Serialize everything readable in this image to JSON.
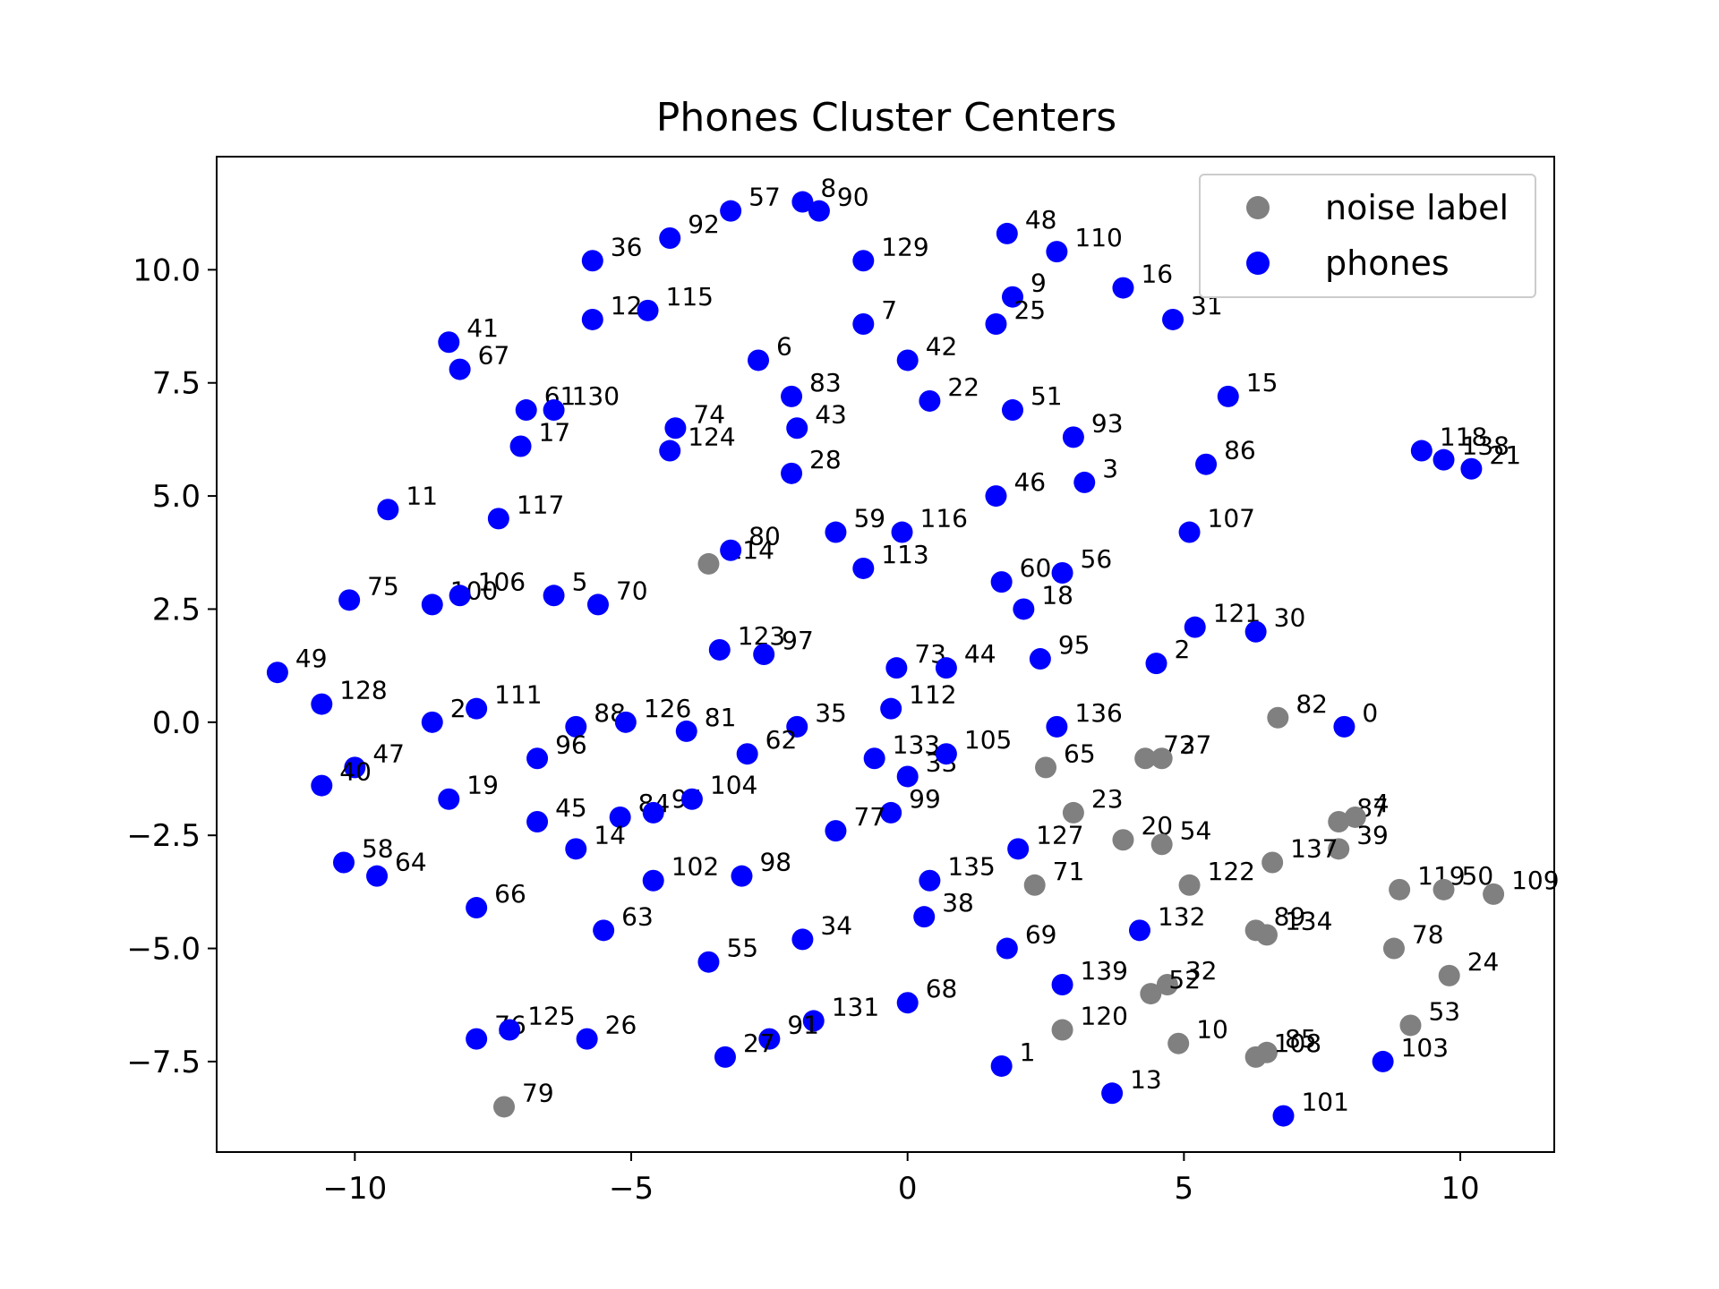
{
  "chart_data": {
    "type": "scatter",
    "title": "Phones Cluster Centers",
    "xlabel": "",
    "ylabel": "",
    "xlim": [
      -12.5,
      11.7
    ],
    "ylim": [
      -9.5,
      12.5
    ],
    "xticks": [
      -10,
      -5,
      0,
      5,
      10
    ],
    "yticks": [
      -7.5,
      -5.0,
      -2.5,
      0.0,
      2.5,
      5.0,
      7.5,
      10.0
    ],
    "xtick_labels": [
      "−10",
      "−5",
      "0",
      "5",
      "10"
    ],
    "ytick_labels": [
      "−7.5",
      "−5.0",
      "−2.5",
      "0.0",
      "2.5",
      "5.0",
      "7.5",
      "10.0"
    ],
    "grid": false,
    "legend_position": "top-right",
    "series": [
      {
        "name": "noise label",
        "color": "#808080",
        "points": [
          {
            "label": "114",
            "x": -3.6,
            "y": 3.5
          },
          {
            "label": "82",
            "x": 6.7,
            "y": 0.1
          },
          {
            "label": "65",
            "x": 2.5,
            "y": -1.0
          },
          {
            "label": "72",
            "x": 4.3,
            "y": -0.8
          },
          {
            "label": "37",
            "x": 4.6,
            "y": -0.8
          },
          {
            "label": "23",
            "x": 3.0,
            "y": -2.0
          },
          {
            "label": "20",
            "x": 3.9,
            "y": -2.6
          },
          {
            "label": "54",
            "x": 4.6,
            "y": -2.7
          },
          {
            "label": "87",
            "x": 7.8,
            "y": -2.2
          },
          {
            "label": "4",
            "x": 8.1,
            "y": -2.1
          },
          {
            "label": "39",
            "x": 7.8,
            "y": -2.8
          },
          {
            "label": "137",
            "x": 6.6,
            "y": -3.1
          },
          {
            "label": "71",
            "x": 2.3,
            "y": -3.6
          },
          {
            "label": "122",
            "x": 5.1,
            "y": -3.6
          },
          {
            "label": "119",
            "x": 8.9,
            "y": -3.7
          },
          {
            "label": "50",
            "x": 9.7,
            "y": -3.7
          },
          {
            "label": "109",
            "x": 10.6,
            "y": -3.8
          },
          {
            "label": "89",
            "x": 6.3,
            "y": -4.6
          },
          {
            "label": "134",
            "x": 6.5,
            "y": -4.7
          },
          {
            "label": "78",
            "x": 8.8,
            "y": -5.0
          },
          {
            "label": "24",
            "x": 9.8,
            "y": -5.6
          },
          {
            "label": "32",
            "x": 4.7,
            "y": -5.8
          },
          {
            "label": "52",
            "x": 4.4,
            "y": -6.0
          },
          {
            "label": "120",
            "x": 2.8,
            "y": -6.8
          },
          {
            "label": "53",
            "x": 9.1,
            "y": -6.7
          },
          {
            "label": "10",
            "x": 4.9,
            "y": -7.1
          },
          {
            "label": "85",
            "x": 6.5,
            "y": -7.3
          },
          {
            "label": "108",
            "x": 6.3,
            "y": -7.4
          },
          {
            "label": "79",
            "x": -7.3,
            "y": -8.5
          }
        ]
      },
      {
        "name": "phones",
        "color": "#0000ff",
        "points": [
          {
            "label": "57",
            "x": -3.2,
            "y": 11.3
          },
          {
            "label": "8",
            "x": -1.9,
            "y": 11.5
          },
          {
            "label": "90",
            "x": -1.6,
            "y": 11.3
          },
          {
            "label": "92",
            "x": -4.3,
            "y": 10.7
          },
          {
            "label": "36",
            "x": -5.7,
            "y": 10.2
          },
          {
            "label": "129",
            "x": -0.8,
            "y": 10.2
          },
          {
            "label": "48",
            "x": 1.8,
            "y": 10.8
          },
          {
            "label": "110",
            "x": 2.7,
            "y": 10.4
          },
          {
            "label": "16",
            "x": 3.9,
            "y": 9.6
          },
          {
            "label": "9",
            "x": 1.9,
            "y": 9.4
          },
          {
            "label": "25",
            "x": 1.6,
            "y": 8.8
          },
          {
            "label": "31",
            "x": 4.8,
            "y": 8.9
          },
          {
            "label": "12",
            "x": -5.7,
            "y": 8.9
          },
          {
            "label": "115",
            "x": -4.7,
            "y": 9.1
          },
          {
            "label": "7",
            "x": -0.8,
            "y": 8.8
          },
          {
            "label": "41",
            "x": -8.3,
            "y": 8.4
          },
          {
            "label": "67",
            "x": -8.1,
            "y": 7.8
          },
          {
            "label": "6",
            "x": -2.7,
            "y": 8.0
          },
          {
            "label": "42",
            "x": 0.0,
            "y": 8.0
          },
          {
            "label": "83",
            "x": -2.1,
            "y": 7.2
          },
          {
            "label": "22",
            "x": 0.4,
            "y": 7.1
          },
          {
            "label": "51",
            "x": 1.9,
            "y": 6.9
          },
          {
            "label": "15",
            "x": 5.8,
            "y": 7.2
          },
          {
            "label": "61",
            "x": -6.9,
            "y": 6.9
          },
          {
            "label": "130",
            "x": -6.4,
            "y": 6.9
          },
          {
            "label": "74",
            "x": -4.2,
            "y": 6.5
          },
          {
            "label": "43",
            "x": -2.0,
            "y": 6.5
          },
          {
            "label": "93",
            "x": 3.0,
            "y": 6.3
          },
          {
            "label": "17",
            "x": -7.0,
            "y": 6.1
          },
          {
            "label": "124",
            "x": -4.3,
            "y": 6.0
          },
          {
            "label": "86",
            "x": 5.4,
            "y": 5.7
          },
          {
            "label": "118",
            "x": 9.3,
            "y": 6.0
          },
          {
            "label": "138",
            "x": 9.7,
            "y": 5.8
          },
          {
            "label": "21",
            "x": 10.2,
            "y": 5.6
          },
          {
            "label": "28",
            "x": -2.1,
            "y": 5.5
          },
          {
            "label": "3",
            "x": 3.2,
            "y": 5.3
          },
          {
            "label": "46",
            "x": 1.6,
            "y": 5.0
          },
          {
            "label": "11",
            "x": -9.4,
            "y": 4.7
          },
          {
            "label": "117",
            "x": -7.4,
            "y": 4.5
          },
          {
            "label": "59",
            "x": -1.3,
            "y": 4.2
          },
          {
            "label": "116",
            "x": -0.1,
            "y": 4.2
          },
          {
            "label": "107",
            "x": 5.1,
            "y": 4.2
          },
          {
            "label": "80",
            "x": -3.2,
            "y": 3.8
          },
          {
            "label": "113",
            "x": -0.8,
            "y": 3.4
          },
          {
            "label": "60",
            "x": 1.7,
            "y": 3.1
          },
          {
            "label": "56",
            "x": 2.8,
            "y": 3.3
          },
          {
            "label": "18",
            "x": 2.1,
            "y": 2.5
          },
          {
            "label": "75",
            "x": -10.1,
            "y": 2.7
          },
          {
            "label": "100",
            "x": -8.6,
            "y": 2.6
          },
          {
            "label": "106",
            "x": -8.1,
            "y": 2.8
          },
          {
            "label": "5",
            "x": -6.4,
            "y": 2.8
          },
          {
            "label": "70",
            "x": -5.6,
            "y": 2.6
          },
          {
            "label": "121",
            "x": 5.2,
            "y": 2.1
          },
          {
            "label": "30",
            "x": 6.3,
            "y": 2.0
          },
          {
            "label": "123",
            "x": -3.4,
            "y": 1.6
          },
          {
            "label": "97",
            "x": -2.6,
            "y": 1.5
          },
          {
            "label": "73",
            "x": -0.2,
            "y": 1.2
          },
          {
            "label": "44",
            "x": 0.7,
            "y": 1.2
          },
          {
            "label": "95",
            "x": 2.4,
            "y": 1.4
          },
          {
            "label": "2",
            "x": 4.5,
            "y": 1.3
          },
          {
            "label": "49",
            "x": -11.4,
            "y": 1.1
          },
          {
            "label": "128",
            "x": -10.6,
            "y": 0.4
          },
          {
            "label": "29",
            "x": -8.6,
            "y": 0.0
          },
          {
            "label": "111",
            "x": -7.8,
            "y": 0.3
          },
          {
            "label": "88",
            "x": -6.0,
            "y": -0.1
          },
          {
            "label": "126",
            "x": -5.1,
            "y": 0.0
          },
          {
            "label": "81",
            "x": -4.0,
            "y": -0.2
          },
          {
            "label": "35",
            "x": -2.0,
            "y": -0.1
          },
          {
            "label": "112",
            "x": -0.3,
            "y": 0.3
          },
          {
            "label": "136",
            "x": 2.7,
            "y": -0.1
          },
          {
            "label": "0",
            "x": 7.9,
            "y": -0.1
          },
          {
            "label": "47",
            "x": -10.0,
            "y": -1.0
          },
          {
            "label": "40",
            "x": -10.6,
            "y": -1.4
          },
          {
            "label": "96",
            "x": -6.7,
            "y": -0.8
          },
          {
            "label": "62",
            "x": -2.9,
            "y": -0.7
          },
          {
            "label": "133",
            "x": -0.6,
            "y": -0.8
          },
          {
            "label": "33",
            "x": 0.0,
            "y": -1.2
          },
          {
            "label": "105",
            "x": 0.7,
            "y": -0.7
          },
          {
            "label": "19",
            "x": -8.3,
            "y": -1.7
          },
          {
            "label": "45",
            "x": -6.7,
            "y": -2.2
          },
          {
            "label": "84",
            "x": -5.2,
            "y": -2.1
          },
          {
            "label": "94",
            "x": -4.6,
            "y": -2.0
          },
          {
            "label": "104",
            "x": -3.9,
            "y": -1.7
          },
          {
            "label": "99",
            "x": -0.3,
            "y": -2.0
          },
          {
            "label": "77",
            "x": -1.3,
            "y": -2.4
          },
          {
            "label": "127",
            "x": 2.0,
            "y": -2.8
          },
          {
            "label": "14",
            "x": -6.0,
            "y": -2.8
          },
          {
            "label": "58",
            "x": -10.2,
            "y": -3.1
          },
          {
            "label": "64",
            "x": -9.6,
            "y": -3.4
          },
          {
            "label": "102",
            "x": -4.6,
            "y": -3.5
          },
          {
            "label": "98",
            "x": -3.0,
            "y": -3.4
          },
          {
            "label": "135",
            "x": 0.4,
            "y": -3.5
          },
          {
            "label": "66",
            "x": -7.8,
            "y": -4.1
          },
          {
            "label": "38",
            "x": 0.3,
            "y": -4.3
          },
          {
            "label": "63",
            "x": -5.5,
            "y": -4.6
          },
          {
            "label": "34",
            "x": -1.9,
            "y": -4.8
          },
          {
            "label": "132",
            "x": 4.2,
            "y": -4.6
          },
          {
            "label": "69",
            "x": 1.8,
            "y": -5.0
          },
          {
            "label": "55",
            "x": -3.6,
            "y": -5.3
          },
          {
            "label": "139",
            "x": 2.8,
            "y": -5.8
          },
          {
            "label": "68",
            "x": 0.0,
            "y": -6.2
          },
          {
            "label": "131",
            "x": -1.7,
            "y": -6.6
          },
          {
            "label": "76",
            "x": -7.8,
            "y": -7.0
          },
          {
            "label": "125",
            "x": -7.2,
            "y": -6.8
          },
          {
            "label": "26",
            "x": -5.8,
            "y": -7.0
          },
          {
            "label": "91",
            "x": -2.5,
            "y": -7.0
          },
          {
            "label": "27",
            "x": -3.3,
            "y": -7.4
          },
          {
            "label": "1",
            "x": 1.7,
            "y": -7.6
          },
          {
            "label": "103",
            "x": 8.6,
            "y": -7.5
          },
          {
            "label": "13",
            "x": 3.7,
            "y": -8.2
          },
          {
            "label": "101",
            "x": 6.8,
            "y": -8.7
          }
        ]
      }
    ]
  }
}
